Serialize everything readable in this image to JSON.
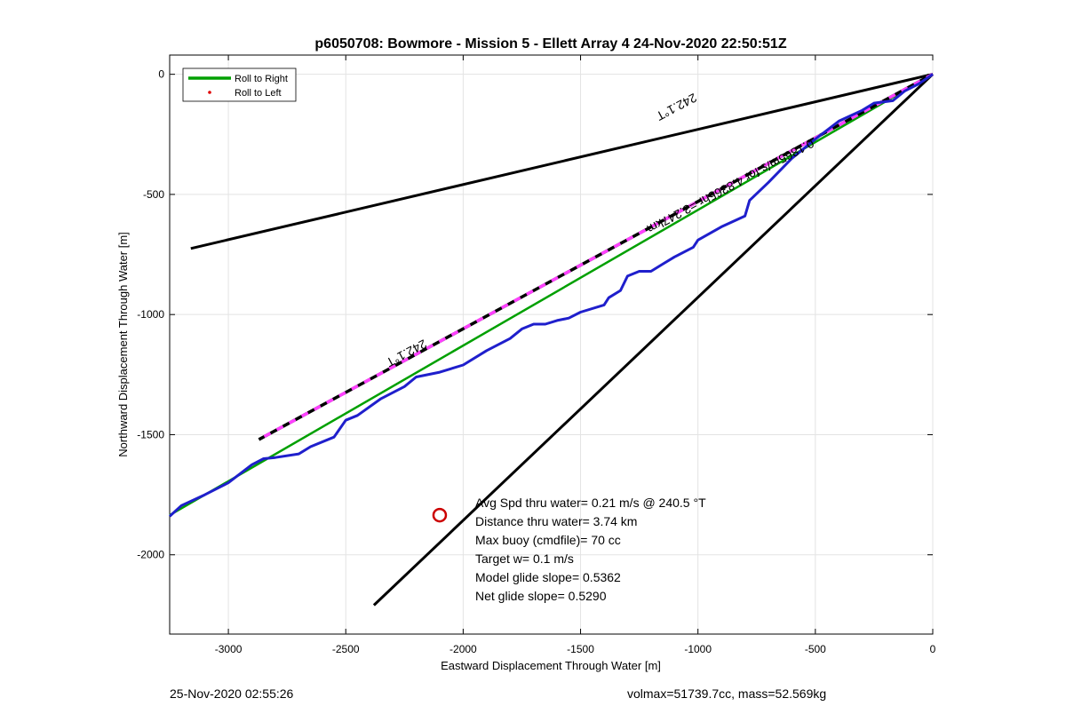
{
  "chart_data": {
    "type": "line",
    "title": "p6050708: Bowmore - Mission 5 - Ellett Array 4 24-Nov-2020 22:50:51Z",
    "xlabel": "Eastward Displacement Through Water [m]",
    "ylabel": "Northward Displacement Through Water [m]",
    "xlim": [
      -3250,
      0
    ],
    "ylim": [
      -2330,
      80
    ],
    "xticks": [
      -3000,
      -2500,
      -2000,
      -1500,
      -1000,
      -500,
      0
    ],
    "yticks": [
      0,
      -500,
      -1000,
      -1500,
      -2000
    ],
    "xtick_labels": [
      "-3000",
      "-2500",
      "-2000",
      "-1500",
      "-1000",
      "-500",
      "0"
    ],
    "ytick_labels": [
      "0",
      "-500",
      "-1000",
      "-1500",
      "-2000"
    ],
    "grid": true,
    "legend_position": "top-left",
    "legend": [
      {
        "label": "Roll to Right",
        "color": "#00a000",
        "style": "line"
      },
      {
        "label": "Roll to Left",
        "color": "#e00000",
        "style": "dot"
      }
    ],
    "series": [
      {
        "key": "black_upper",
        "color": "#000000",
        "style": "solid",
        "x": [
          0,
          -3160
        ],
        "y": [
          0,
          -725
        ]
      },
      {
        "key": "black_lower",
        "color": "#000000",
        "style": "solid",
        "x": [
          0,
          -2380
        ],
        "y": [
          0,
          -2210
        ]
      },
      {
        "key": "heading_dashed",
        "color": "#000000",
        "dash_color": "#ff40ff",
        "style": "dashed",
        "x": [
          0,
          -2870
        ],
        "y": [
          0,
          -1520
        ]
      },
      {
        "key": "green_model",
        "name": "Roll to Right",
        "color": "#00a000",
        "style": "solid",
        "x": [
          0,
          -3250
        ],
        "y": [
          0,
          -1835
        ]
      },
      {
        "key": "blue_track",
        "color": "#1f1fcc",
        "style": "solid",
        "x": [
          0,
          -60,
          -120,
          -170,
          -250,
          -300,
          -400,
          -500,
          -600,
          -700,
          -780,
          -800,
          -900,
          -1000,
          -1020,
          -1100,
          -1150,
          -1200,
          -1250,
          -1300,
          -1330,
          -1380,
          -1400,
          -1500,
          -1550,
          -1600,
          -1650,
          -1700,
          -1750,
          -1800,
          -1900,
          -2000,
          -2100,
          -2200,
          -2250,
          -2350,
          -2450,
          -2500,
          -2550,
          -2650,
          -2700,
          -2800,
          -2850,
          -2900,
          -3000,
          -3100,
          -3200,
          -3250
        ],
        "y": [
          0,
          -40,
          -70,
          -110,
          -120,
          -150,
          -195,
          -270,
          -350,
          -450,
          -525,
          -590,
          -635,
          -690,
          -720,
          -760,
          -790,
          -820,
          -820,
          -840,
          -900,
          -930,
          -960,
          -990,
          -1015,
          -1025,
          -1040,
          -1040,
          -1060,
          -1100,
          -1150,
          -1210,
          -1240,
          -1260,
          -1300,
          -1350,
          -1420,
          -1440,
          -1510,
          -1550,
          -1580,
          -1595,
          -1600,
          -1625,
          -1700,
          -1750,
          -1795,
          -1840
        ]
      }
    ],
    "markers": [
      {
        "label": "red-circle-marker",
        "x": -2100,
        "y": -1835,
        "color": "#cc0000"
      }
    ],
    "annotations": [
      {
        "key": "upper_heading",
        "text": "242.1°T",
        "x": -1100,
        "y": -120,
        "rotation": 152
      },
      {
        "key": "lower_heading",
        "text": "242.1°T",
        "x": -2250,
        "y": -1145,
        "rotation": 152
      },
      {
        "key": "speed_dist",
        "text": "0.1865m/s for 4.8365hr =3.247km",
        "x": -870,
        "y": -450,
        "rotation": 152
      }
    ],
    "info_box": [
      "Avg Spd thru water=  0.21 m/s @ 240.5 °T",
      "Distance thru water=  3.74 km",
      "Max buoy (cmdfile)= 70 cc",
      "Target w= 0.1 m/s",
      "Model glide slope= 0.5362",
      "Net glide slope= 0.5290"
    ]
  },
  "footer": {
    "timestamp": "25-Nov-2020 02:55:26",
    "vol_mass": "volmax=51739.7cc, mass=52.569kg"
  }
}
